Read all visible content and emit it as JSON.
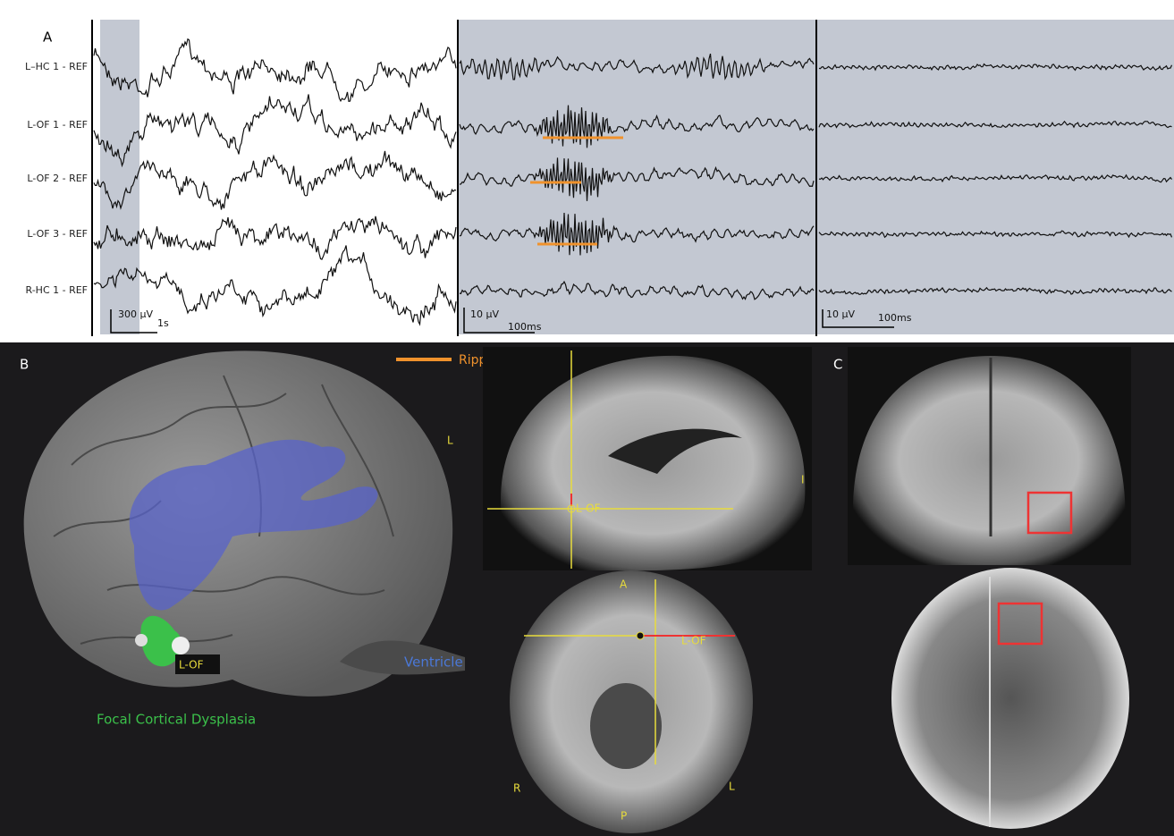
{
  "panels": {
    "a": "A",
    "b": "B",
    "c": "C"
  },
  "channels": [
    "L–HC 1 - REF",
    "L-OF 1 - REF",
    "L-OF 2 - REF",
    "L-OF 3 - REF",
    "R-HC 1 - REF"
  ],
  "scale_bars": [
    {
      "amplitude": "300 µV",
      "time": "1s"
    },
    {
      "amplitude": "10 µV",
      "time": "100ms"
    },
    {
      "amplitude": "10 µV",
      "time": "100ms"
    }
  ],
  "legend": {
    "ripple": "Ripple"
  },
  "brain_3d": {
    "side": "L",
    "electrode": "L-OF",
    "fcd": "Focal Cortical Dysplasia",
    "ventricle": "Ventricle"
  },
  "sagittal": {
    "direction": "I",
    "electrode": "L-OF"
  },
  "axial": {
    "anterior": "A",
    "electrode": "L-OF",
    "right": "R",
    "left": "L",
    "posterior": "P"
  }
}
